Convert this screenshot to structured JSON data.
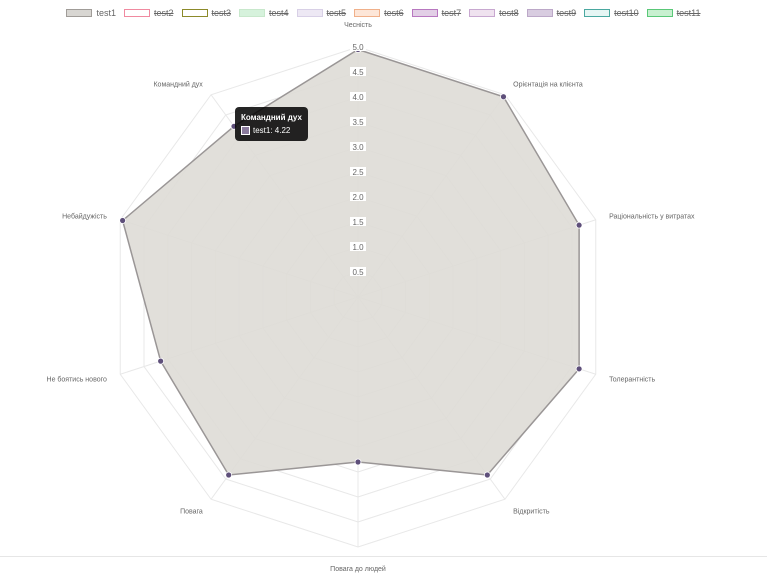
{
  "legend": [
    {
      "label": "test1",
      "fill": "#d8d6d2",
      "border": "#a09c98",
      "hidden": false
    },
    {
      "label": "test2",
      "fill": "#ffffff",
      "border": "#f08aa0",
      "hidden": true
    },
    {
      "label": "test3",
      "fill": "#ffffff",
      "border": "#8c8a2a",
      "hidden": true
    },
    {
      "label": "test4",
      "fill": "#d6f2dc",
      "border": "#c8e8cc",
      "hidden": true
    },
    {
      "label": "test5",
      "fill": "#ede8f4",
      "border": "#d8d0e6",
      "hidden": true
    },
    {
      "label": "test6",
      "fill": "#fde6d8",
      "border": "#f0b08a",
      "hidden": true
    },
    {
      "label": "test7",
      "fill": "#e2cfe6",
      "border": "#b878c0",
      "hidden": true
    },
    {
      "label": "test8",
      "fill": "#efe2ef",
      "border": "#c8a8d0",
      "hidden": true
    },
    {
      "label": "test9",
      "fill": "#d8cce0",
      "border": "#bca8c8",
      "hidden": true
    },
    {
      "label": "test10",
      "fill": "#e6f6f4",
      "border": "#4aa8a0",
      "hidden": true
    },
    {
      "label": "test11",
      "fill": "#c8f0d0",
      "border": "#5ac878",
      "hidden": true
    }
  ],
  "tooltip": {
    "title": "Командний дух",
    "label": "test1: 4.22",
    "swatch_color": "#8a7a9c"
  },
  "chart_data": {
    "type": "radar",
    "labels": [
      "Чесність",
      "Орієнтація на клієнта",
      "Раціональність у витратах",
      "Толерантність",
      "Відкритість",
      "Повага до людей",
      "Повага",
      "Не боятись нового",
      "Небайдужість",
      "Командний дух"
    ],
    "ticks": [
      "0.5",
      "1.0",
      "1.5",
      "2.0",
      "2.5",
      "3.0",
      "3.5",
      "4.0",
      "4.5",
      "5.0"
    ],
    "range": [
      0,
      5
    ],
    "grid": true,
    "legend_position": "top",
    "series": [
      {
        "name": "test1",
        "values": [
          4.95,
          4.95,
          4.65,
          4.65,
          4.4,
          3.3,
          4.4,
          4.15,
          4.95,
          4.22
        ],
        "fill": "#dedbd6",
        "line": "#9a9696",
        "point": "#5e4f7a"
      }
    ]
  }
}
